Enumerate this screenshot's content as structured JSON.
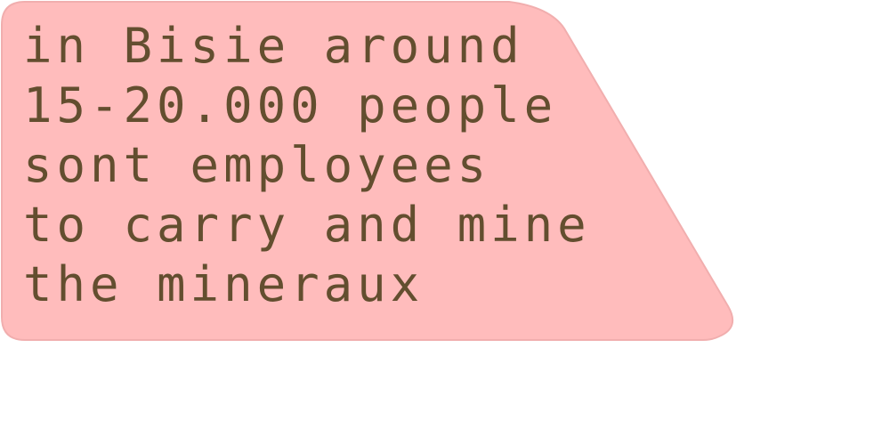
{
  "callout": {
    "fill_color": "#ffbcbc",
    "edge_color": "#f1aeae",
    "text_color": "#634e2f",
    "lines": [
      "in Bisie around",
      "15-20.000 people",
      "sont employees",
      "to carry and mine",
      "the mineraux"
    ]
  }
}
